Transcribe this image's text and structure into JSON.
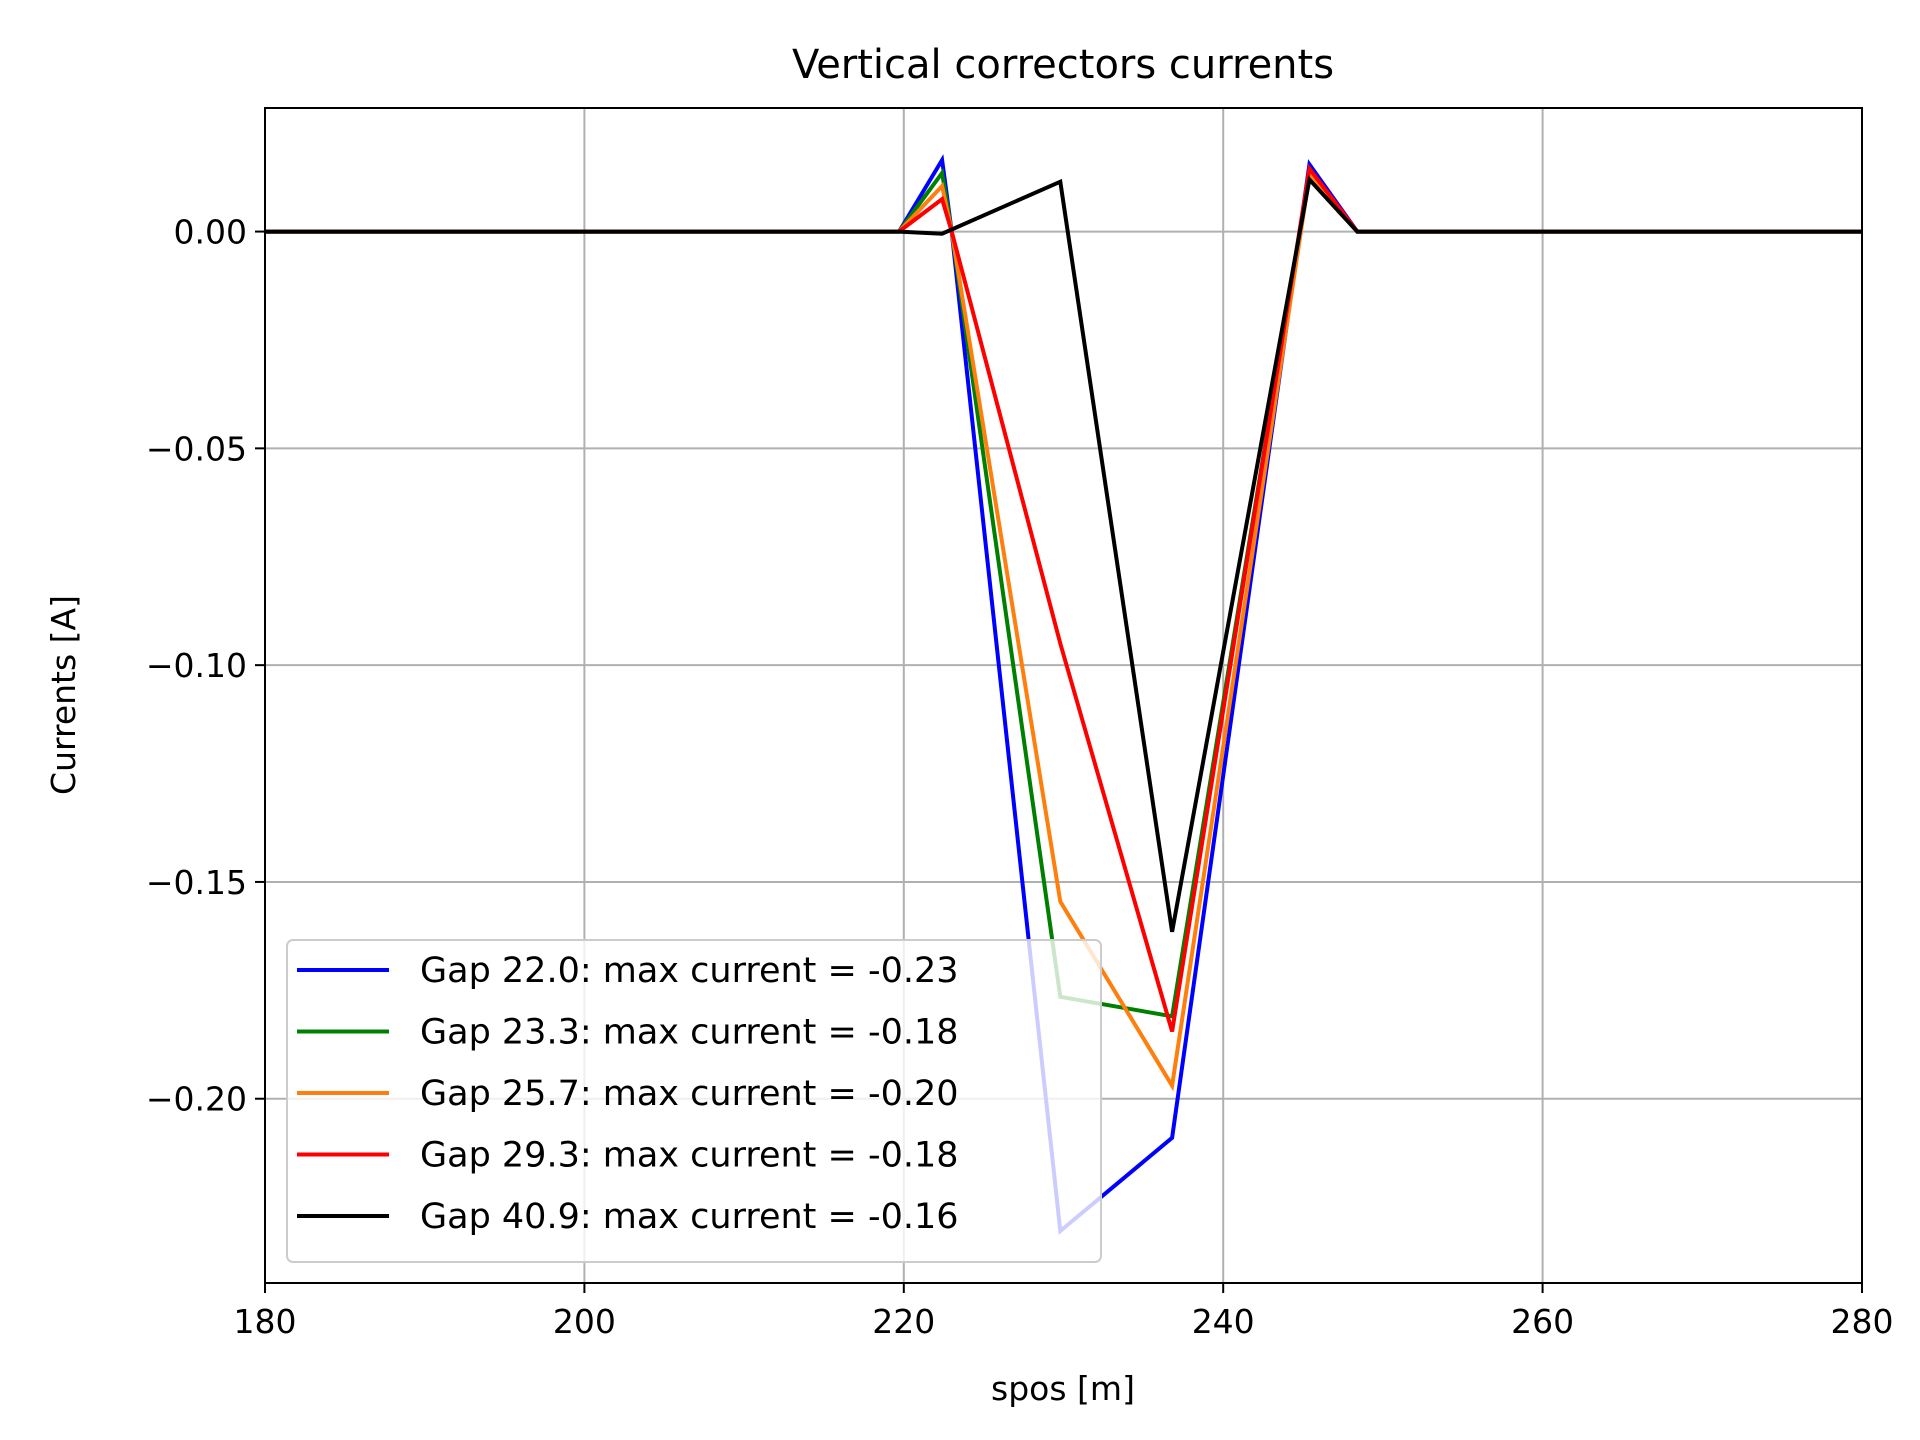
{
  "chart_data": {
    "type": "line",
    "title": "Vertical correctors currents",
    "xlabel": "spos [m]",
    "ylabel": "Currents [A]",
    "xlim": [
      180,
      280
    ],
    "ylim": [
      -0.2425,
      0.0285
    ],
    "xticks": [
      180,
      200,
      220,
      240,
      260,
      280
    ],
    "xtick_labels": [
      "180",
      "200",
      "220",
      "240",
      "260",
      "280"
    ],
    "yticks": [
      0.0,
      -0.05,
      -0.1,
      -0.15,
      -0.2
    ],
    "ytick_labels": [
      "0.00",
      "−0.05",
      "−0.10",
      "−0.15",
      "−0.20"
    ],
    "grid": true,
    "legend_location": "lower-left",
    "series": [
      {
        "name": "Gap 22.0: max current = -0.23",
        "color": "#0000ff",
        "x": [
          180,
          219.7,
          222.4,
          223.0,
          229.8,
          236.8,
          245.4,
          248.4,
          280
        ],
        "y": [
          0.0,
          0.0,
          0.0165,
          0.0,
          -0.2305,
          -0.209,
          0.0155,
          0.0,
          0.0
        ]
      },
      {
        "name": "Gap 23.3: max current = -0.18",
        "color": "#008000",
        "x": [
          180,
          219.7,
          222.4,
          223.0,
          229.8,
          236.8,
          245.4,
          248.4,
          280
        ],
        "y": [
          0.0,
          0.0,
          0.0135,
          0.0,
          -0.1765,
          -0.181,
          0.0135,
          0.0,
          0.0
        ]
      },
      {
        "name": "Gap 25.7: max current = -0.20",
        "color": "#ff7f0e",
        "x": [
          180,
          219.7,
          222.4,
          223.0,
          229.8,
          236.8,
          245.4,
          248.4,
          280
        ],
        "y": [
          0.0,
          0.0,
          0.0105,
          0.0,
          -0.1545,
          -0.197,
          0.013,
          0.0,
          0.0
        ]
      },
      {
        "name": "Gap 29.3: max current = -0.18",
        "color": "#ff0000",
        "x": [
          180,
          219.7,
          222.4,
          223.0,
          229.8,
          236.8,
          245.4,
          248.4,
          280
        ],
        "y": [
          0.0,
          0.0,
          0.0075,
          0.0,
          -0.095,
          -0.1845,
          0.0145,
          0.0,
          0.0
        ]
      },
      {
        "name": "Gap 40.9: max current = -0.16",
        "color": "#000000",
        "x": [
          180,
          219.7,
          222.4,
          229.8,
          236.8,
          245.4,
          248.4,
          280
        ],
        "y": [
          0.0,
          0.0,
          -0.0005,
          0.0115,
          -0.1615,
          0.012,
          0.0,
          0.0
        ]
      }
    ]
  }
}
